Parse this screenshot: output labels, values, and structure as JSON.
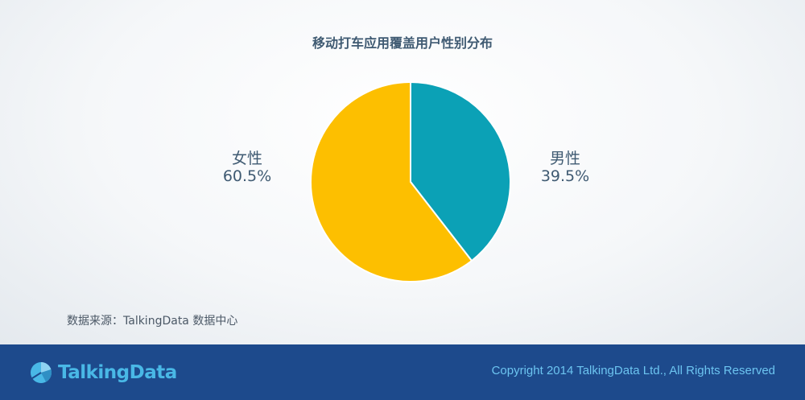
{
  "chart_data": {
    "type": "pie",
    "title": "移动打车应用覆盖用户性别分布",
    "slices": [
      {
        "label": "男性",
        "value": 39.5,
        "display": "39.5%",
        "color": "#0ba1b6"
      },
      {
        "label": "女性",
        "value": 60.5,
        "display": "60.5%",
        "color": "#fdbf00"
      }
    ]
  },
  "source": "数据来源：TalkingData 数据中心",
  "footer": {
    "logo_text": "TalkingData",
    "copyright": "Copyright 2014 TalkingData Ltd., All Rights Reserved"
  }
}
